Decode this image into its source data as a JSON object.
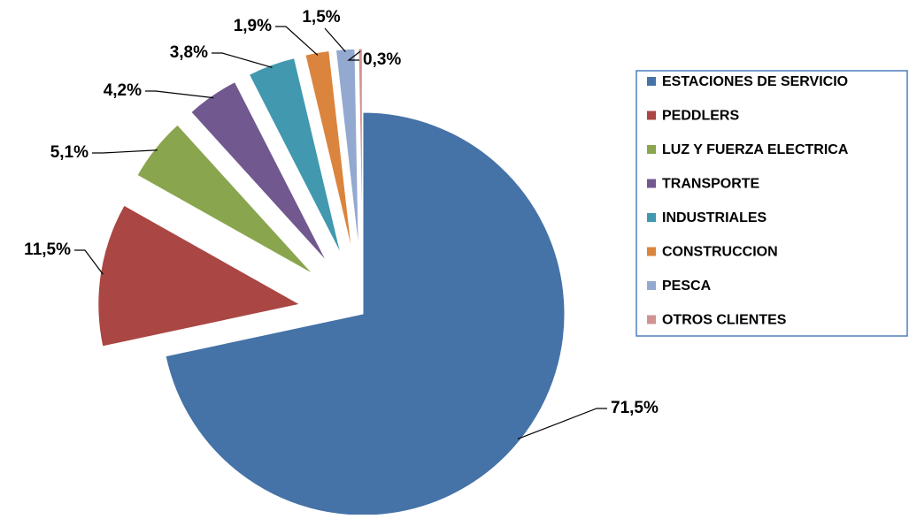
{
  "chart_data": {
    "type": "pie",
    "categories": [
      "ESTACIONES DE SERVICIO",
      "PEDDLERS",
      "LUZ Y FUERZA ELECTRICA",
      "TRANSPORTE",
      "INDUSTRIALES",
      "CONSTRUCCION",
      "PESCA",
      "OTROS CLIENTES"
    ],
    "values": [
      71.5,
      11.5,
      5.1,
      4.2,
      3.8,
      1.9,
      1.5,
      0.3
    ],
    "value_labels": [
      "71,5%",
      "11,5%",
      "5,1%",
      "4,2%",
      "3,8%",
      "1,9%",
      "1,5%",
      "0,3%"
    ],
    "colors": [
      "#4572a7",
      "#aa4643",
      "#89a54e",
      "#71588f",
      "#4198af",
      "#db843d",
      "#93a9cf",
      "#d19392"
    ],
    "legend": "right"
  }
}
